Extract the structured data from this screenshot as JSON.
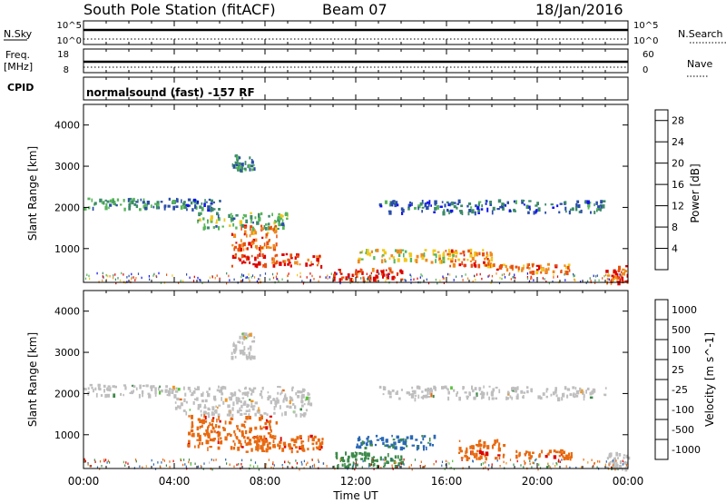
{
  "header": {
    "station": "South Pole Station (fitACF)",
    "beam": "Beam 07",
    "date": "18/Jan/2016"
  },
  "strips": {
    "nsky_label": "N.Sky",
    "nsky_ticks": [
      "10^5",
      "10^0"
    ],
    "nsearch_label": "N.Search",
    "nsearch_ticks": [
      "10^5",
      "10^0"
    ],
    "freq_label_1": "Freq.",
    "freq_label_2": "[MHz]",
    "freq_ticks": [
      "18",
      "8"
    ],
    "nave_label": "Nave",
    "nave_ticks": [
      "60",
      "0"
    ],
    "cpid_label": "CPID",
    "cpid_text": "normalsound (fast) -157 RF"
  },
  "colors": {
    "power_scale": [
      "#1212f0",
      "#2a4da8",
      "#3c8a6a",
      "#57b55a",
      "#f0c81e",
      "#f08a1e",
      "#e85010",
      "#dd0000"
    ],
    "velocity_scale": [
      "#1e3ca8",
      "#2a68b5",
      "#3c8a4a",
      "#5ac23a",
      "#c8c8c8",
      "#f0961e",
      "#e86a10",
      "#dd0000"
    ],
    "ground_scatter": "#bebebe"
  },
  "chart_data": [
    {
      "type": "heatmap",
      "name": "power",
      "ylabel": "Slant Range [km]",
      "xlabel": "",
      "ylim": [
        180,
        4500
      ],
      "x_ticks": [
        "00:00",
        "04:00",
        "08:00",
        "12:00",
        "16:00",
        "20:00",
        "00:00"
      ],
      "y_ticks": [
        1000,
        2000,
        3000,
        4000
      ],
      "colorbar_label": "Power [dB]",
      "colorbar_ticks": [
        "4",
        "8",
        "12",
        "16",
        "20",
        "24",
        "28"
      ],
      "colorbar_range": [
        0,
        30
      ],
      "features": [
        {
          "t0": 0.0,
          "t1": 4.0,
          "r0": 1980,
          "r1": 2240,
          "value": 10
        },
        {
          "t0": 4.0,
          "t1": 6.0,
          "r0": 1950,
          "r1": 2250,
          "value": 8
        },
        {
          "t0": 5.0,
          "t1": 9.0,
          "r0": 1500,
          "r1": 1900,
          "value": 12
        },
        {
          "t0": 6.5,
          "t1": 8.5,
          "r0": 1000,
          "r1": 1600,
          "value": 22
        },
        {
          "t0": 6.5,
          "t1": 10.5,
          "r0": 600,
          "r1": 900,
          "value": 26
        },
        {
          "t0": 11.0,
          "t1": 14.0,
          "r0": 250,
          "r1": 550,
          "value": 27
        },
        {
          "t0": 16.0,
          "t1": 18.0,
          "r0": 600,
          "r1": 1000,
          "value": 22
        },
        {
          "t0": 18.0,
          "t1": 21.5,
          "r0": 450,
          "r1": 650,
          "value": 22
        },
        {
          "t0": 12.0,
          "t1": 16.5,
          "r0": 700,
          "r1": 1000,
          "value": 18
        },
        {
          "t0": 6.5,
          "t1": 7.5,
          "r0": 2900,
          "r1": 3300,
          "value": 9
        },
        {
          "t0": 13.0,
          "t1": 23.0,
          "r0": 1900,
          "r1": 2200,
          "value": 7
        },
        {
          "t0": 23.0,
          "t1": 24.0,
          "r0": 200,
          "r1": 600,
          "value": 25
        }
      ]
    },
    {
      "type": "heatmap",
      "name": "velocity",
      "ylabel": "Slant Range [km]",
      "xlabel": "Time UT",
      "ylim": [
        180,
        4500
      ],
      "x_ticks": [
        "00:00",
        "04:00",
        "08:00",
        "12:00",
        "16:00",
        "20:00",
        "00:00"
      ],
      "y_ticks": [
        1000,
        2000,
        3000,
        4000
      ],
      "colorbar_label": "Velocity [m s^-1]",
      "colorbar_ticks": [
        "1000",
        "500",
        "100",
        "25",
        "-25",
        "-100",
        "-500",
        "-1000"
      ],
      "features": [
        {
          "t0": 0.0,
          "t1": 4.0,
          "r0": 1980,
          "r1": 2240,
          "value": 0
        },
        {
          "t0": 4.0,
          "t1": 10.0,
          "r0": 1500,
          "r1": 2200,
          "value": 0
        },
        {
          "t0": 4.5,
          "t1": 8.5,
          "r0": 700,
          "r1": 1500,
          "value": -400
        },
        {
          "t0": 7.0,
          "t1": 10.5,
          "r0": 600,
          "r1": 1000,
          "value": -400
        },
        {
          "t0": 11.0,
          "t1": 14.0,
          "r0": 250,
          "r1": 600,
          "value": 150
        },
        {
          "t0": 12.0,
          "t1": 15.5,
          "r0": 700,
          "r1": 1000,
          "value": 600
        },
        {
          "t0": 16.5,
          "t1": 18.5,
          "r0": 450,
          "r1": 900,
          "value": -400
        },
        {
          "t0": 19.0,
          "t1": 21.5,
          "r0": 450,
          "r1": 650,
          "value": -400
        },
        {
          "t0": 6.5,
          "t1": 7.5,
          "r0": 2900,
          "r1": 3500,
          "value": 0
        },
        {
          "t0": 13.0,
          "t1": 23.0,
          "r0": 1900,
          "r1": 2200,
          "value": 0
        },
        {
          "t0": 23.0,
          "t1": 24.0,
          "r0": 200,
          "r1": 600,
          "value": 0
        }
      ]
    }
  ]
}
